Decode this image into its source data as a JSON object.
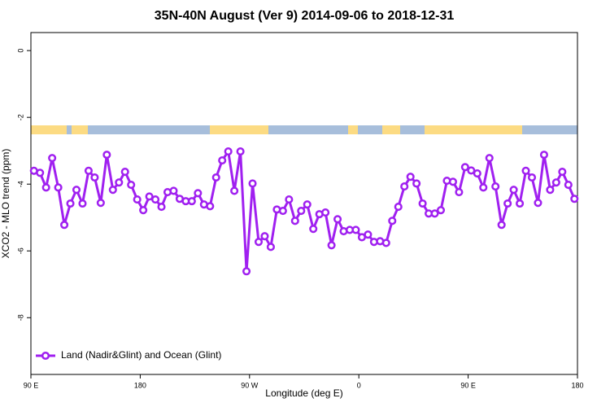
{
  "chart_data": {
    "type": "line",
    "title": "35N-40N August (Ver 9)   2014-09-06 to 2018-12-31",
    "x_label": "Longitude (deg E)",
    "y_label": "XCO2 - MLO trend (ppm)",
    "x": [
      92.5,
      97.5,
      102.5,
      107.5,
      112.5,
      117.5,
      122.5,
      127.5,
      132.5,
      137.5,
      142.5,
      147.5,
      152.5,
      157.5,
      162.5,
      167.5,
      172.5,
      177.5,
      182.5,
      187.5,
      192.5,
      197.5,
      202.5,
      207.5,
      212.5,
      217.5,
      222.5,
      227.5,
      232.5,
      237.5,
      242.5,
      247.5,
      252.5,
      257.5,
      262.5,
      267.5,
      272.5,
      277.5,
      282.5,
      287.5,
      292.5,
      297.5,
      302.5,
      307.5,
      312.5,
      317.5,
      322.5,
      327.5,
      332.5,
      337.5,
      342.5,
      347.5,
      352.5,
      357.5,
      362.5,
      367.5,
      372.5,
      377.5,
      382.5,
      387.5,
      392.5,
      397.5,
      402.5,
      407.5,
      412.5,
      417.5,
      422.5,
      427.5,
      432.5,
      437.5,
      442.5,
      447.5,
      452.5,
      457.5,
      462.5,
      467.5,
      472.5,
      477.5,
      482.5,
      487.5,
      492.5,
      497.5,
      502.5,
      507.5,
      512.5,
      517.5,
      522.5,
      527.5,
      532.5,
      537.5
    ],
    "series": [
      {
        "name": "Land (Nadir&Glint) and Ocean (Glint)",
        "color": "#a020f0",
        "values": [
          -3.6,
          -3.66,
          -4.1,
          -3.22,
          -4.1,
          -5.22,
          -4.58,
          -4.17,
          -4.58,
          -3.6,
          -3.8,
          -4.56,
          -3.12,
          -4.17,
          -3.95,
          -3.63,
          -4.02,
          -4.46,
          -4.78,
          -4.37,
          -4.46,
          -4.68,
          -4.24,
          -4.2,
          -4.44,
          -4.51,
          -4.51,
          -4.27,
          -4.61,
          -4.66,
          -3.8,
          -3.29,
          -3.02,
          -4.2,
          -3.02,
          -6.61,
          -3.98,
          -5.73,
          -5.56,
          -5.88,
          -4.76,
          -4.8,
          -4.46,
          -5.1,
          -4.8,
          -4.61,
          -5.34,
          -4.9,
          -4.85,
          -5.83,
          -5.05,
          -5.41,
          -5.37,
          -5.37,
          -5.59,
          -5.51,
          -5.73,
          -5.71,
          -5.76,
          -5.1,
          -4.68,
          -4.07,
          -3.78,
          -3.98,
          -4.58,
          -4.88,
          -4.88,
          -4.78,
          -3.9,
          -3.93,
          -4.24,
          -3.49,
          -3.59,
          -3.68,
          -4.1,
          -3.22,
          -4.07,
          -5.22,
          -4.58,
          -4.17,
          -4.58,
          -3.6,
          -3.8,
          -4.56,
          -3.12,
          -4.17,
          -3.95,
          -3.63,
          -4.02,
          -4.44
        ]
      }
    ],
    "xlim": [
      90,
      540
    ],
    "xticks": [
      {
        "value": 90,
        "label": "90 E"
      },
      180,
      {
        "value": 270,
        "label": "90 W"
      },
      {
        "value": 360,
        "label": "0"
      },
      {
        "value": 450,
        "label": "90 E"
      },
      {
        "value": 540,
        "label": "180"
      }
    ],
    "ylim": [
      -9.7,
      0.54
    ],
    "yticks": [
      0,
      -2,
      -4,
      -6,
      -8
    ],
    "legend": "bottom-left"
  }
}
